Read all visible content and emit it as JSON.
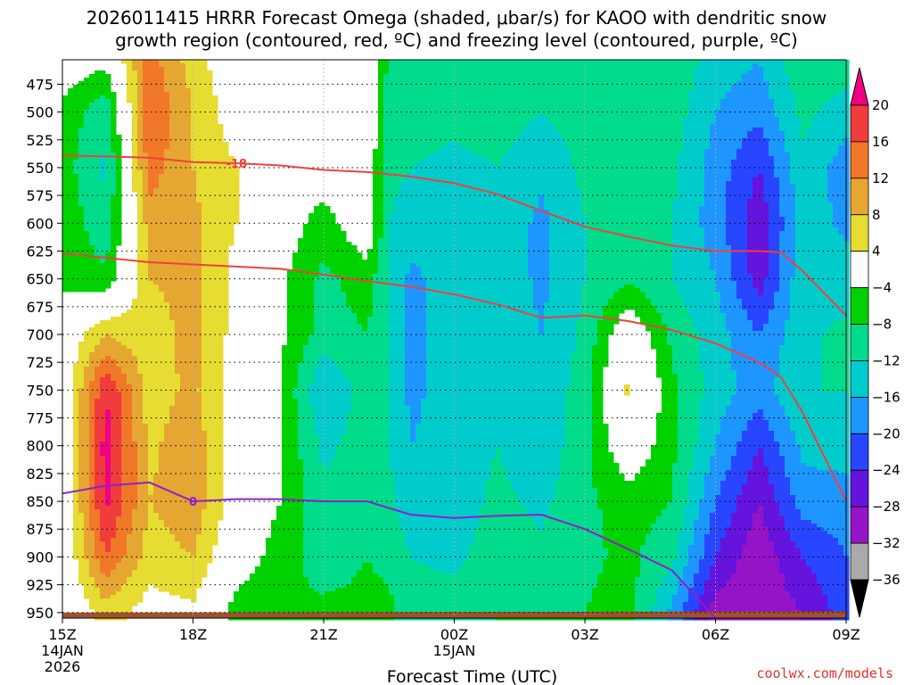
{
  "title": {
    "line1": "2026011415 HRRR Forecast Omega (shaded, μbar/s) for KAOO with dendritic snow",
    "line2": "growth region (contoured, red, ºC) and freezing level (contoured, purple, ºC)"
  },
  "credit": "coolwx.com/models",
  "chart_data": {
    "type": "heatmap",
    "xlabel": "Forecast Time (UTC)",
    "x_ticks": [
      {
        "hour": 0,
        "label": "15Z",
        "sub": [
          "14JAN",
          "2026"
        ]
      },
      {
        "hour": 3,
        "label": "18Z",
        "sub": []
      },
      {
        "hour": 6,
        "label": "21Z",
        "sub": []
      },
      {
        "hour": 9,
        "label": "00Z",
        "sub": [
          "15JAN"
        ]
      },
      {
        "hour": 12,
        "label": "03Z",
        "sub": []
      },
      {
        "hour": 15,
        "label": "06Z",
        "sub": []
      },
      {
        "hour": 18,
        "label": "09Z",
        "sub": []
      }
    ],
    "xlim": [
      0,
      18
    ],
    "y_ticks": [
      475,
      500,
      525,
      550,
      575,
      600,
      625,
      650,
      675,
      700,
      725,
      750,
      775,
      800,
      825,
      850,
      875,
      900,
      925,
      950
    ],
    "ylim": [
      453,
      955
    ],
    "grid": true,
    "colorbar": {
      "labels": [
        "20",
        "16",
        "12",
        "8",
        "4",
        "−4",
        "−8",
        "−12",
        "−16",
        "−20",
        "−24",
        "−28",
        "−32",
        "−36"
      ],
      "bands": [
        {
          "min": 16,
          "max": 20,
          "color": "#f03c3c"
        },
        {
          "min": 12,
          "max": 16,
          "color": "#f07828"
        },
        {
          "min": 8,
          "max": 12,
          "color": "#e6a632"
        },
        {
          "min": 4,
          "max": 8,
          "color": "#e6dc32"
        },
        {
          "min": -4,
          "max": 4,
          "color": "#ffffff"
        },
        {
          "min": -8,
          "max": -4,
          "color": "#00d200"
        },
        {
          "min": -12,
          "max": -8,
          "color": "#00dc8c"
        },
        {
          "min": -16,
          "max": -12,
          "color": "#00cccc"
        },
        {
          "min": -20,
          "max": -16,
          "color": "#1e96ff"
        },
        {
          "min": -24,
          "max": -20,
          "color": "#2846ff"
        },
        {
          "min": -28,
          "max": -24,
          "color": "#6414dc"
        },
        {
          "min": -32,
          "max": -28,
          "color": "#9614c8"
        },
        {
          "min": -36,
          "max": -32,
          "color": "#aaaaaa"
        }
      ],
      "over_color": "#f00082",
      "under_color": "#000000"
    },
    "omega_grid": {
      "hours": [
        0,
        1,
        2,
        3,
        4,
        5,
        6,
        7,
        7.5,
        8,
        9,
        10,
        11,
        12,
        13,
        14,
        15,
        16,
        17,
        18
      ],
      "levels": [
        455,
        500,
        550,
        600,
        650,
        700,
        750,
        800,
        850,
        900,
        950
      ],
      "values": [
        [
          -1,
          -3,
          14,
          6,
          0,
          -1,
          -1,
          0,
          -9,
          -9,
          -10,
          -9,
          -11,
          -10,
          -9,
          -9,
          -14,
          -16,
          -9,
          -10
        ],
        [
          -5,
          -11,
          16,
          8,
          1,
          -1,
          -1,
          0,
          -10,
          -10,
          -11,
          -10,
          -12,
          -10,
          -9,
          -10,
          -16,
          -19,
          -11,
          -14
        ],
        [
          -6,
          -13,
          14,
          8,
          4,
          -1,
          -1,
          0,
          -11,
          -12,
          -13,
          -12,
          -15,
          -11,
          -9,
          -11,
          -18,
          -24,
          -13,
          -18
        ],
        [
          -5,
          -11,
          10,
          9,
          4,
          -1,
          -6,
          0,
          -12,
          -14,
          -14,
          -13,
          -17,
          -12,
          -9,
          -12,
          -18,
          -27,
          -14,
          -17
        ],
        [
          -5,
          -7,
          8,
          10,
          2,
          -3,
          -9,
          -6,
          -12,
          -17,
          -14,
          -13,
          -17,
          -12,
          -9,
          -12,
          -16,
          -26,
          -13,
          -14
        ],
        [
          0,
          8,
          5,
          10,
          2,
          -3,
          -10,
          -8,
          -12,
          -17,
          -14,
          -13,
          -16,
          -11,
          1,
          -9,
          -14,
          -20,
          -13,
          -11
        ],
        [
          -1,
          20,
          6,
          9,
          1,
          -4,
          -16,
          -10,
          -12,
          -17,
          -14,
          -12,
          -15,
          -10,
          5,
          -7,
          -14,
          -18,
          -12,
          -12
        ],
        [
          -1,
          22,
          7,
          11,
          1,
          -4,
          -13,
          -10,
          -12,
          -16,
          -14,
          -12,
          -15,
          -9,
          0,
          -7,
          -16,
          -24,
          -15,
          -14
        ],
        [
          -1,
          21,
          8,
          11,
          1,
          -4,
          -11,
          -9,
          -11,
          -15,
          -14,
          -11,
          -13,
          -9,
          -6,
          -8,
          -20,
          -28,
          -18,
          -18
        ],
        [
          -1,
          16,
          6,
          8,
          -1,
          -6,
          -10,
          -8,
          -9,
          -12,
          -13,
          -10,
          -11,
          -9,
          -7,
          -11,
          -24,
          -31,
          -24,
          -20
        ],
        [
          -2,
          6,
          2,
          3,
          -6,
          -8,
          -7,
          -7,
          -7,
          -10,
          -10,
          -8,
          -8,
          -8,
          -6,
          -17,
          -30,
          -31,
          -28,
          -22
        ]
      ]
    },
    "series": [
      {
        "name": "-18",
        "color": "#f04040",
        "x": [
          0,
          2,
          3,
          4,
          5,
          5.5,
          6,
          6.5,
          7,
          8,
          9,
          10,
          11,
          12,
          13,
          14,
          15,
          16,
          16.5,
          17,
          18
        ],
        "y": [
          539,
          541,
          545,
          546,
          548,
          550,
          552,
          553,
          554,
          558,
          564,
          574,
          589,
          603,
          612,
          620,
          625,
          625,
          626,
          643,
          683
        ]
      },
      {
        "name": "",
        "color": "#f04040",
        "x": [
          0,
          2,
          3,
          4,
          5,
          6,
          7,
          8,
          9,
          10,
          11,
          12,
          13,
          14,
          15,
          16,
          16.5,
          17,
          18
        ],
        "y": [
          627,
          635,
          637,
          639,
          641,
          646,
          652,
          657,
          664,
          673,
          685,
          683,
          688,
          696,
          708,
          725,
          738,
          770,
          850
        ]
      },
      {
        "name": "0",
        "color": "#9020c8",
        "x": [
          0,
          1,
          2,
          3,
          4,
          5,
          6,
          7,
          8,
          9,
          10,
          11,
          12,
          13,
          14,
          15
        ],
        "y": [
          843,
          836,
          833,
          850,
          848,
          848,
          850,
          850,
          862,
          865,
          863,
          862,
          875,
          893,
          912,
          955
        ]
      }
    ]
  }
}
